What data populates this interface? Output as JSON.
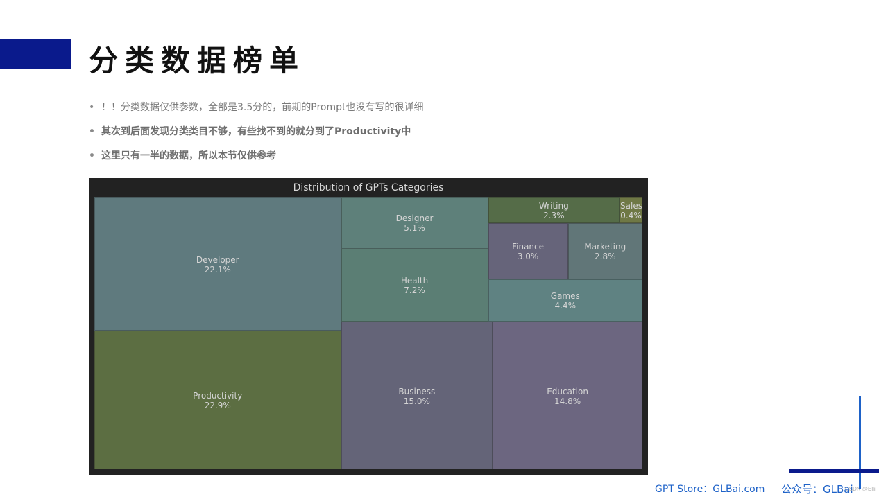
{
  "slide": {
    "title": "分类数据榜单",
    "bullets": [
      "！！分类数据仅供参数，全部是3.5分的，前期的Prompt也没有写的很详细",
      "其次到后面发现分类类目不够，有些找不到的就分到了Productivity中",
      "这里只有一半的数据，所以本节仅供参考"
    ],
    "footer": {
      "store": "GPT Store：GLBai.com",
      "wechat": "公众号：GLBai",
      "watermark": "CSDN @Elli"
    }
  },
  "chart_data": {
    "type": "treemap",
    "title": "Distribution of GPTs Categories",
    "items": [
      {
        "name": "Productivity",
        "value": 22.9,
        "label": "22.9%",
        "color": "#5c6e42"
      },
      {
        "name": "Developer",
        "value": 22.1,
        "label": "22.1%",
        "color": "#5f7a7e"
      },
      {
        "name": "Business",
        "value": 15.0,
        "label": "15.0%",
        "color": "#646478"
      },
      {
        "name": "Education",
        "value": 14.8,
        "label": "14.8%",
        "color": "#6c6680"
      },
      {
        "name": "Health",
        "value": 7.2,
        "label": "7.2%",
        "color": "#5b7e74"
      },
      {
        "name": "Designer",
        "value": 5.1,
        "label": "5.1%",
        "color": "#5e807a"
      },
      {
        "name": "Games",
        "value": 4.4,
        "label": "4.4%",
        "color": "#5f8282"
      },
      {
        "name": "Finance",
        "value": 3.0,
        "label": "3.0%",
        "color": "#66647a"
      },
      {
        "name": "Marketing",
        "value": 2.8,
        "label": "2.8%",
        "color": "#617678"
      },
      {
        "name": "Writing",
        "value": 2.3,
        "label": "2.3%",
        "color": "#556c48"
      },
      {
        "name": "Sales",
        "value": 0.4,
        "label": "0.4%",
        "color": "#6f7845"
      }
    ]
  }
}
